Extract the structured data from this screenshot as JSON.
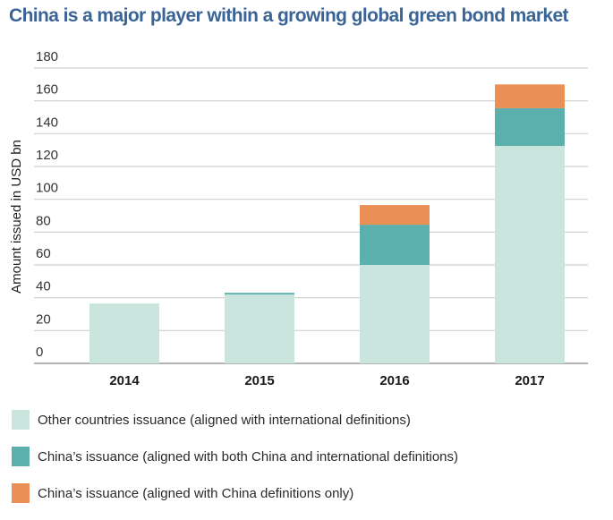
{
  "title": "China is a major player within a growing global green bond market",
  "chart_data": {
    "type": "bar",
    "stacked": true,
    "title": "China is a major player within a growing global green bond market",
    "xlabel": "",
    "ylabel": "Amount issued in USD bn",
    "ylim": [
      0,
      180
    ],
    "yticks": [
      0,
      20,
      40,
      60,
      80,
      100,
      120,
      140,
      160,
      180
    ],
    "grid": true,
    "legend_position": "bottom",
    "categories": [
      "2014",
      "2015",
      "2016",
      "2017"
    ],
    "series": [
      {
        "name": "Other countries issuance (aligned with international definitions)",
        "color": "#c9e5dd",
        "values": [
          36.5,
          42,
          60,
          132.5
        ]
      },
      {
        "name": "China’s issuance (aligned with both China and international definitions)",
        "color": "#5bafad",
        "values": [
          0,
          1,
          24.5,
          23
        ]
      },
      {
        "name": "China’s issuance (aligned with China definitions only)",
        "color": "#ea8f56",
        "values": [
          0,
          0,
          12,
          14.5
        ]
      }
    ]
  }
}
